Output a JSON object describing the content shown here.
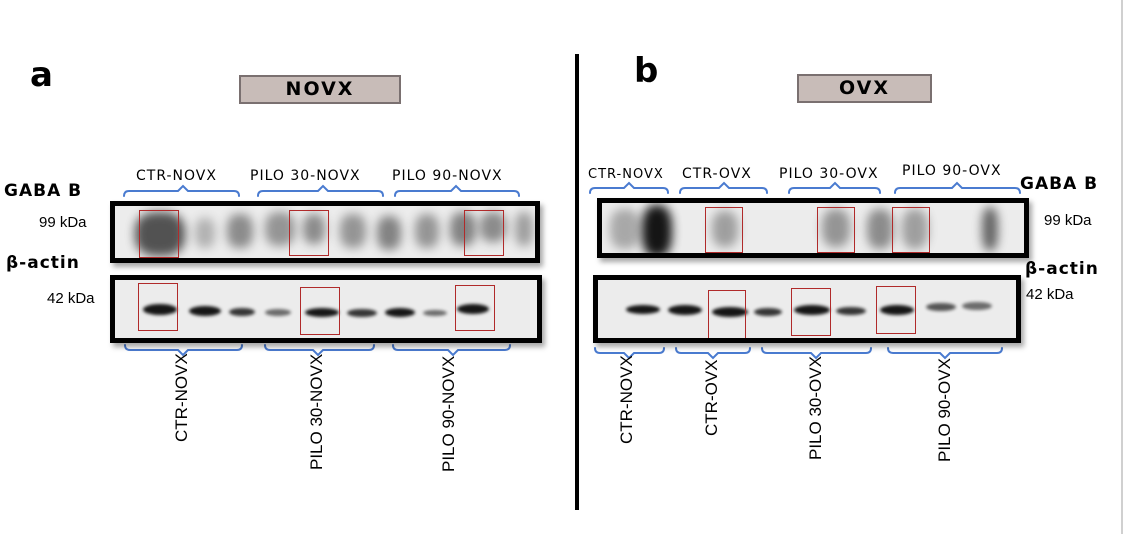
{
  "panel_a": {
    "letter": "a",
    "title": "NOVX",
    "top_groups": [
      "CTR-NOVX",
      "PILO 30-NOVX",
      "PILO 90-NOVX"
    ],
    "target_label": "GABA B",
    "target_kda": "99 kDa",
    "control_label": "β-actin",
    "control_kda": "42 kDa",
    "bottom_groups": [
      "CTR-NOVX",
      "PILO 30-NOVX",
      "PILO 90-NOVX"
    ]
  },
  "panel_b": {
    "letter": "b",
    "title": "OVX",
    "top_groups": [
      "CTR-NOVX",
      "CTR-OVX",
      "PILO 30-OVX",
      "PILO 90-OVX"
    ],
    "target_label": "GABA B",
    "target_kda": "99 kDa",
    "control_label": "β-actin",
    "control_kda": "42 kDa",
    "bottom_groups": [
      "CTR-NOVX",
      "CTR-OVX",
      "PILO 30-OVX",
      "PILO 90-OVX"
    ]
  },
  "colors": {
    "title_box": "#c8bcb8",
    "bracket": "#4a7bd0",
    "highlight_box": "#b02a2a",
    "band": "#161616"
  }
}
